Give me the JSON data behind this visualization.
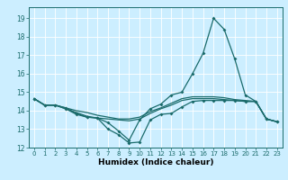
{
  "title": "",
  "xlabel": "Humidex (Indice chaleur)",
  "background_color": "#cceeff",
  "grid_color": "#ffffff",
  "line_color": "#1a6b6b",
  "xlim": [
    -0.5,
    23.5
  ],
  "ylim": [
    12.0,
    19.6
  ],
  "yticks": [
    12,
    13,
    14,
    15,
    16,
    17,
    18,
    19
  ],
  "xticks": [
    0,
    1,
    2,
    3,
    4,
    5,
    6,
    7,
    8,
    9,
    10,
    11,
    12,
    13,
    14,
    15,
    16,
    17,
    18,
    19,
    20,
    21,
    22,
    23
  ],
  "lines": [
    {
      "x": [
        0,
        1,
        2,
        3,
        4,
        5,
        6,
        7,
        8,
        9,
        10,
        11,
        12,
        13,
        14,
        15,
        16,
        17,
        18,
        19,
        20,
        21,
        22,
        23
      ],
      "y": [
        14.65,
        14.3,
        14.3,
        14.1,
        13.8,
        13.65,
        13.6,
        13.0,
        12.7,
        12.25,
        12.3,
        13.5,
        13.8,
        13.85,
        14.2,
        14.5,
        14.55,
        14.55,
        14.55,
        14.55,
        14.5,
        14.5,
        13.55,
        13.4
      ],
      "marker": true
    },
    {
      "x": [
        0,
        1,
        2,
        3,
        4,
        5,
        6,
        7,
        8,
        9,
        10,
        11,
        12,
        13,
        14,
        15,
        16,
        17,
        18,
        19,
        20,
        21,
        22,
        23
      ],
      "y": [
        14.65,
        14.3,
        14.3,
        14.1,
        13.9,
        13.7,
        13.6,
        13.55,
        13.5,
        13.45,
        13.55,
        13.85,
        14.1,
        14.3,
        14.55,
        14.65,
        14.65,
        14.65,
        14.6,
        14.55,
        14.5,
        14.5,
        13.55,
        13.4
      ],
      "marker": false
    },
    {
      "x": [
        0,
        1,
        2,
        3,
        4,
        5,
        6,
        7,
        8,
        9,
        10,
        11,
        12,
        13,
        14,
        15,
        16,
        17,
        18,
        19,
        20,
        21,
        22,
        23
      ],
      "y": [
        14.65,
        14.3,
        14.3,
        14.15,
        14.0,
        13.9,
        13.75,
        13.65,
        13.55,
        13.55,
        13.65,
        13.95,
        14.15,
        14.4,
        14.65,
        14.75,
        14.75,
        14.75,
        14.7,
        14.6,
        14.55,
        14.5,
        13.55,
        13.4
      ],
      "marker": false
    },
    {
      "x": [
        0,
        1,
        2,
        3,
        4,
        5,
        6,
        7,
        8,
        9,
        10,
        11,
        12,
        13,
        14,
        15,
        16,
        17,
        18,
        19,
        20,
        21,
        22,
        23
      ],
      "y": [
        14.65,
        14.3,
        14.3,
        14.15,
        13.85,
        13.65,
        13.6,
        13.35,
        12.9,
        12.4,
        13.5,
        14.1,
        14.35,
        14.85,
        15.0,
        16.0,
        17.1,
        19.0,
        18.4,
        16.8,
        14.85,
        14.5,
        13.55,
        13.4
      ],
      "marker": true
    }
  ]
}
